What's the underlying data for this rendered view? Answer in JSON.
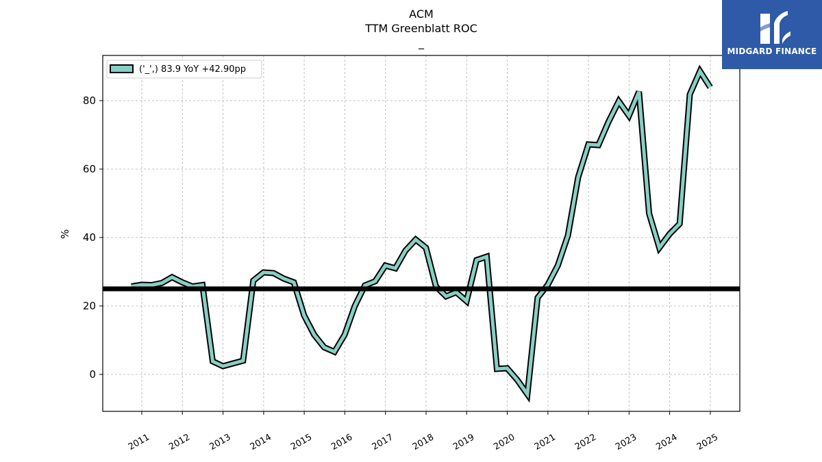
{
  "header": {
    "ticker": "ACM",
    "metric": "TTM Greenblatt ROC",
    "subtitle": "_"
  },
  "brand": {
    "name": "MIDGARD FINANCE",
    "color": "#2f5aa8"
  },
  "chart_data": {
    "type": "line",
    "title": "ACM",
    "ylabel": "%",
    "ylim": [
      -10.8,
      93.2
    ],
    "x_ticks": [
      "2011",
      "2012",
      "2013",
      "2014",
      "2015",
      "2016",
      "2017",
      "2018",
      "2019",
      "2020",
      "2021",
      "2022",
      "2023",
      "2024",
      "2025"
    ],
    "y_ticks": [
      0,
      20,
      40,
      60,
      80
    ],
    "grid": true,
    "legend_position": "top-left",
    "reference_line": 25.0,
    "series": [
      {
        "name": "('_',) 83.9 YoY +42.90pp",
        "color": "#88cfc3",
        "edge_color": "#000000",
        "points": [
          [
            "2010-09-30",
            25.7
          ],
          [
            "2010-12-31",
            26.2
          ],
          [
            "2011-03-31",
            26.1
          ],
          [
            "2011-06-30",
            26.7
          ],
          [
            "2011-09-30",
            28.4
          ],
          [
            "2011-12-31",
            26.9
          ],
          [
            "2012-03-31",
            25.7
          ],
          [
            "2012-06-30",
            26.1
          ],
          [
            "2012-09-30",
            3.8
          ],
          [
            "2012-12-31",
            2.4
          ],
          [
            "2013-03-31",
            3.2
          ],
          [
            "2013-06-30",
            4.0
          ],
          [
            "2013-09-30",
            27.4
          ],
          [
            "2013-12-31",
            29.8
          ],
          [
            "2014-03-31",
            29.6
          ],
          [
            "2014-06-30",
            28.0
          ],
          [
            "2014-09-30",
            26.9
          ],
          [
            "2014-12-31",
            17.2
          ],
          [
            "2015-03-31",
            11.6
          ],
          [
            "2015-06-30",
            7.9
          ],
          [
            "2015-09-30",
            6.6
          ],
          [
            "2015-12-31",
            11.6
          ],
          [
            "2016-03-31",
            20.0
          ],
          [
            "2016-06-30",
            26.0
          ],
          [
            "2016-09-30",
            27.2
          ],
          [
            "2016-12-31",
            31.8
          ],
          [
            "2017-03-31",
            31.0
          ],
          [
            "2017-06-30",
            36.2
          ],
          [
            "2017-09-30",
            39.4
          ],
          [
            "2017-12-31",
            37.0
          ],
          [
            "2018-03-31",
            25.7
          ],
          [
            "2018-06-30",
            22.8
          ],
          [
            "2018-09-30",
            24.0
          ],
          [
            "2018-12-31",
            21.4
          ],
          [
            "2019-03-31",
            33.4
          ],
          [
            "2019-06-30",
            34.4
          ],
          [
            "2019-09-30",
            1.6
          ],
          [
            "2019-12-31",
            1.8
          ],
          [
            "2020-03-31",
            -1.6
          ],
          [
            "2020-06-30",
            -5.8
          ],
          [
            "2020-09-30",
            22.4
          ],
          [
            "2020-12-31",
            26.2
          ],
          [
            "2021-03-31",
            31.8
          ],
          [
            "2021-06-30",
            40.6
          ],
          [
            "2021-09-30",
            57.6
          ],
          [
            "2021-12-31",
            67.2
          ],
          [
            "2022-03-31",
            67.0
          ],
          [
            "2022-06-30",
            73.8
          ],
          [
            "2022-09-30",
            79.8
          ],
          [
            "2022-12-31",
            75.6
          ],
          [
            "2023-03-31",
            82.6
          ],
          [
            "2023-06-30",
            47.0
          ],
          [
            "2023-09-30",
            37.0
          ],
          [
            "2023-12-31",
            41.0
          ],
          [
            "2024-03-31",
            44.0
          ],
          [
            "2024-06-30",
            81.8
          ],
          [
            "2024-09-30",
            88.6
          ],
          [
            "2024-12-31",
            83.9
          ]
        ]
      }
    ]
  }
}
